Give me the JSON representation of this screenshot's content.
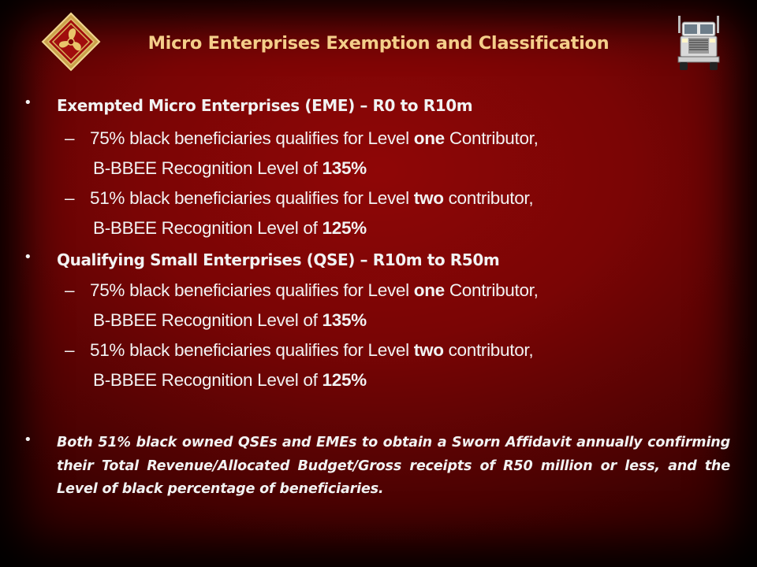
{
  "slide": {
    "title": "Micro Enterprises Exemption and Classification",
    "colors": {
      "background": "#7a0505",
      "title": "#f4ce8a",
      "text": "#f2f2f2"
    },
    "logo_icon": "diamond-fan-logo",
    "truck_icon": "truck-icon"
  },
  "bullets": [
    {
      "marker": "•",
      "text": "Exempted Micro Enterprises (EME) – R0 to R10m",
      "subs": [
        {
          "dash": "–",
          "pre": "75% black beneficiaries qualifies for Level ",
          "em": "one",
          "post": " Contributor,",
          "cont_pre": "B-BBEE Recognition Level of ",
          "cont_em": "135%"
        },
        {
          "dash": "–",
          "pre": "51% black beneficiaries qualifies for Level ",
          "em": "two",
          "post": " contributor,",
          "cont_pre": "B-BBEE Recognition Level of ",
          "cont_em": "125%"
        }
      ]
    },
    {
      "marker": "•",
      "text": "Qualifying Small Enterprises (QSE) – R10m to R50m",
      "subs": [
        {
          "dash": "–",
          "pre": "75% black beneficiaries qualifies for Level ",
          "em": "one",
          "post": " Contributor,",
          "cont_pre": "B-BBEE Recognition Level of ",
          "cont_em": "135%"
        },
        {
          "dash": "–",
          "pre": "51% black beneficiaries qualifies for Level ",
          "em": "two",
          "post": " contributor,",
          "cont_pre": "B-BBEE Recognition Level of ",
          "cont_em": "125%"
        }
      ]
    }
  ],
  "note": {
    "marker": "•",
    "text": "Both 51% black owned QSEs and EMEs to obtain a Sworn Affidavit annually confirming their Total Revenue/Allocated Budget/Gross receipts of R50 million or less, and the Level of black percentage of beneficiaries."
  }
}
